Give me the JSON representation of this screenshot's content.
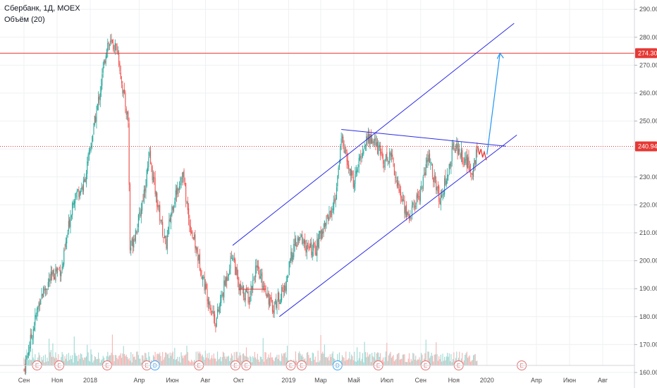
{
  "legend": {
    "symbol": "Сбербанк, 1Д, MOEX",
    "volume": "Объём (20)"
  },
  "colors": {
    "up": "#26a69a",
    "down": "#ef5350",
    "vol_up": "#9fd8d2",
    "vol_down": "#f5b3b1",
    "channel": "#2b2be6",
    "resistance": "#e53935",
    "projection": "#2196f3",
    "grid": "#eef0f3",
    "price_tag": "#e53935",
    "event": "#e57373",
    "dividend": "#42a5f5"
  },
  "chart_data": {
    "type": "candlestick",
    "y_ticks": [
      "290.00",
      "280.00",
      "270.00",
      "260.00",
      "250.00",
      "240.00",
      "230.00",
      "220.00",
      "210.00",
      "200.00",
      "190.00",
      "180.00",
      "170.00",
      "160.00"
    ],
    "y_range": [
      158,
      294
    ],
    "x_labels": [
      "Сен",
      "Ноя",
      "2018",
      "Апр",
      "Июн",
      "Авг",
      "Окт",
      "2019",
      "Мар",
      "Май",
      "Июл",
      "Сен",
      "Ноя",
      "2020",
      "Апр",
      "Июн",
      "Авг"
    ],
    "price_levels": [
      {
        "label": "274.30",
        "price": 274.3,
        "style": "solid"
      },
      {
        "label": "240.94",
        "price": 240.94,
        "style": "dotted"
      }
    ],
    "events": [
      "E",
      "E",
      "E",
      "E",
      "D",
      "E",
      "E",
      "E",
      "E",
      "E",
      "D",
      "E",
      "E",
      "E",
      "E"
    ],
    "series": [
      {
        "name": "close",
        "anchors": [
          [
            "2017-09-01",
            161
          ],
          [
            "2017-10-01",
            187
          ],
          [
            "2017-10-15",
            192
          ],
          [
            "2017-11-01",
            197
          ],
          [
            "2017-11-10",
            197
          ],
          [
            "2017-12-01",
            223
          ],
          [
            "2017-12-20",
            227
          ],
          [
            "2018-01-01",
            240
          ],
          [
            "2018-01-20",
            262
          ],
          [
            "2018-02-01",
            278
          ],
          [
            "2018-02-20",
            276
          ],
          [
            "2018-03-01",
            262
          ],
          [
            "2018-03-12",
            250
          ],
          [
            "2018-03-15",
            204
          ],
          [
            "2018-04-01",
            215
          ],
          [
            "2018-04-10",
            225
          ],
          [
            "2018-04-20",
            237
          ],
          [
            "2018-05-05",
            220
          ],
          [
            "2018-05-20",
            205
          ],
          [
            "2018-06-01",
            220
          ],
          [
            "2018-06-20",
            232
          ],
          [
            "2018-07-01",
            215
          ],
          [
            "2018-07-20",
            200
          ],
          [
            "2018-08-01",
            190
          ],
          [
            "2018-08-20",
            178
          ],
          [
            "2018-09-01",
            188
          ],
          [
            "2018-09-20",
            203
          ],
          [
            "2018-10-01",
            190
          ],
          [
            "2018-10-20",
            187
          ],
          [
            "2018-11-01",
            197
          ],
          [
            "2018-11-20",
            190
          ],
          [
            "2018-12-01",
            183
          ],
          [
            "2018-12-15",
            187
          ],
          [
            "2018-12-25",
            190
          ],
          [
            "2019-01-10",
            205
          ],
          [
            "2019-01-25",
            208
          ],
          [
            "2019-02-05",
            204
          ],
          [
            "2019-02-20",
            204
          ],
          [
            "2019-03-05",
            212
          ],
          [
            "2019-03-25",
            220
          ],
          [
            "2019-04-01",
            228
          ],
          [
            "2019-04-08",
            245
          ],
          [
            "2019-04-20",
            234
          ],
          [
            "2019-05-01",
            228
          ],
          [
            "2019-05-15",
            238
          ],
          [
            "2019-05-25",
            244
          ],
          [
            "2019-06-05",
            243
          ],
          [
            "2019-06-15",
            240
          ],
          [
            "2019-06-25",
            236
          ],
          [
            "2019-07-10",
            238
          ],
          [
            "2019-07-20",
            227
          ],
          [
            "2019-08-01",
            220
          ],
          [
            "2019-08-10",
            215
          ],
          [
            "2019-08-20",
            220
          ],
          [
            "2019-09-01",
            225
          ],
          [
            "2019-09-15",
            237
          ],
          [
            "2019-09-25",
            230
          ],
          [
            "2019-10-05",
            222
          ],
          [
            "2019-10-20",
            230
          ],
          [
            "2019-11-01",
            242
          ],
          [
            "2019-11-15",
            238
          ],
          [
            "2019-11-25",
            235
          ],
          [
            "2019-12-05",
            232
          ],
          [
            "2019-12-15",
            241
          ]
        ]
      },
      {
        "name": "volume",
        "range": [
          0,
          1
        ]
      }
    ]
  }
}
